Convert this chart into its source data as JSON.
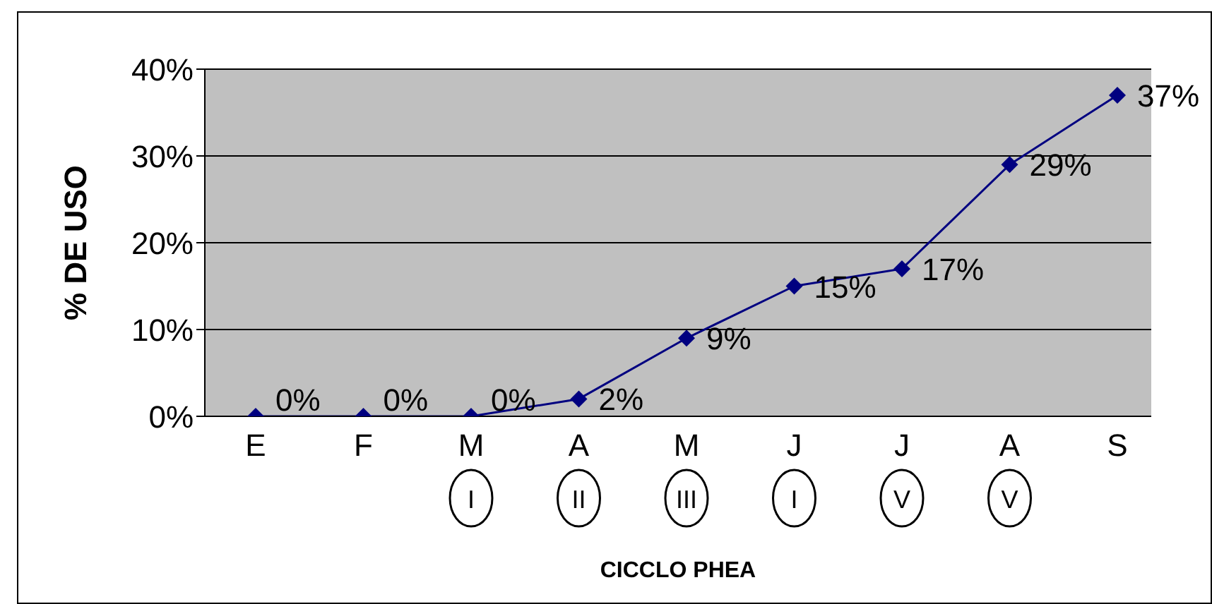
{
  "chart_data": {
    "type": "line",
    "ylabel": "% DE USO",
    "xlabel": "CICCLO PHEA",
    "categories": [
      "E",
      "F",
      "M",
      "A",
      "M",
      "J",
      "J",
      "A",
      "S"
    ],
    "series": [
      {
        "color": "#000080",
        "values": [
          0,
          0,
          0,
          2,
          9,
          15,
          17,
          29,
          37
        ],
        "value_labels": [
          "0%",
          "0%",
          "0%",
          "2%",
          "9%",
          "15%",
          "17%",
          "29%",
          "37%"
        ]
      }
    ],
    "ylim": [
      0,
      40
    ],
    "yticks": [
      {
        "value": 0,
        "label": "0%"
      },
      {
        "value": 10,
        "label": "10%"
      },
      {
        "value": 20,
        "label": "20%"
      },
      {
        "value": 30,
        "label": "30%"
      },
      {
        "value": 40,
        "label": "40%"
      }
    ],
    "annotations": [
      "I",
      "II",
      "III",
      "I",
      "V",
      "V"
    ],
    "grid": "y",
    "marker": "diamond",
    "legend": false
  }
}
